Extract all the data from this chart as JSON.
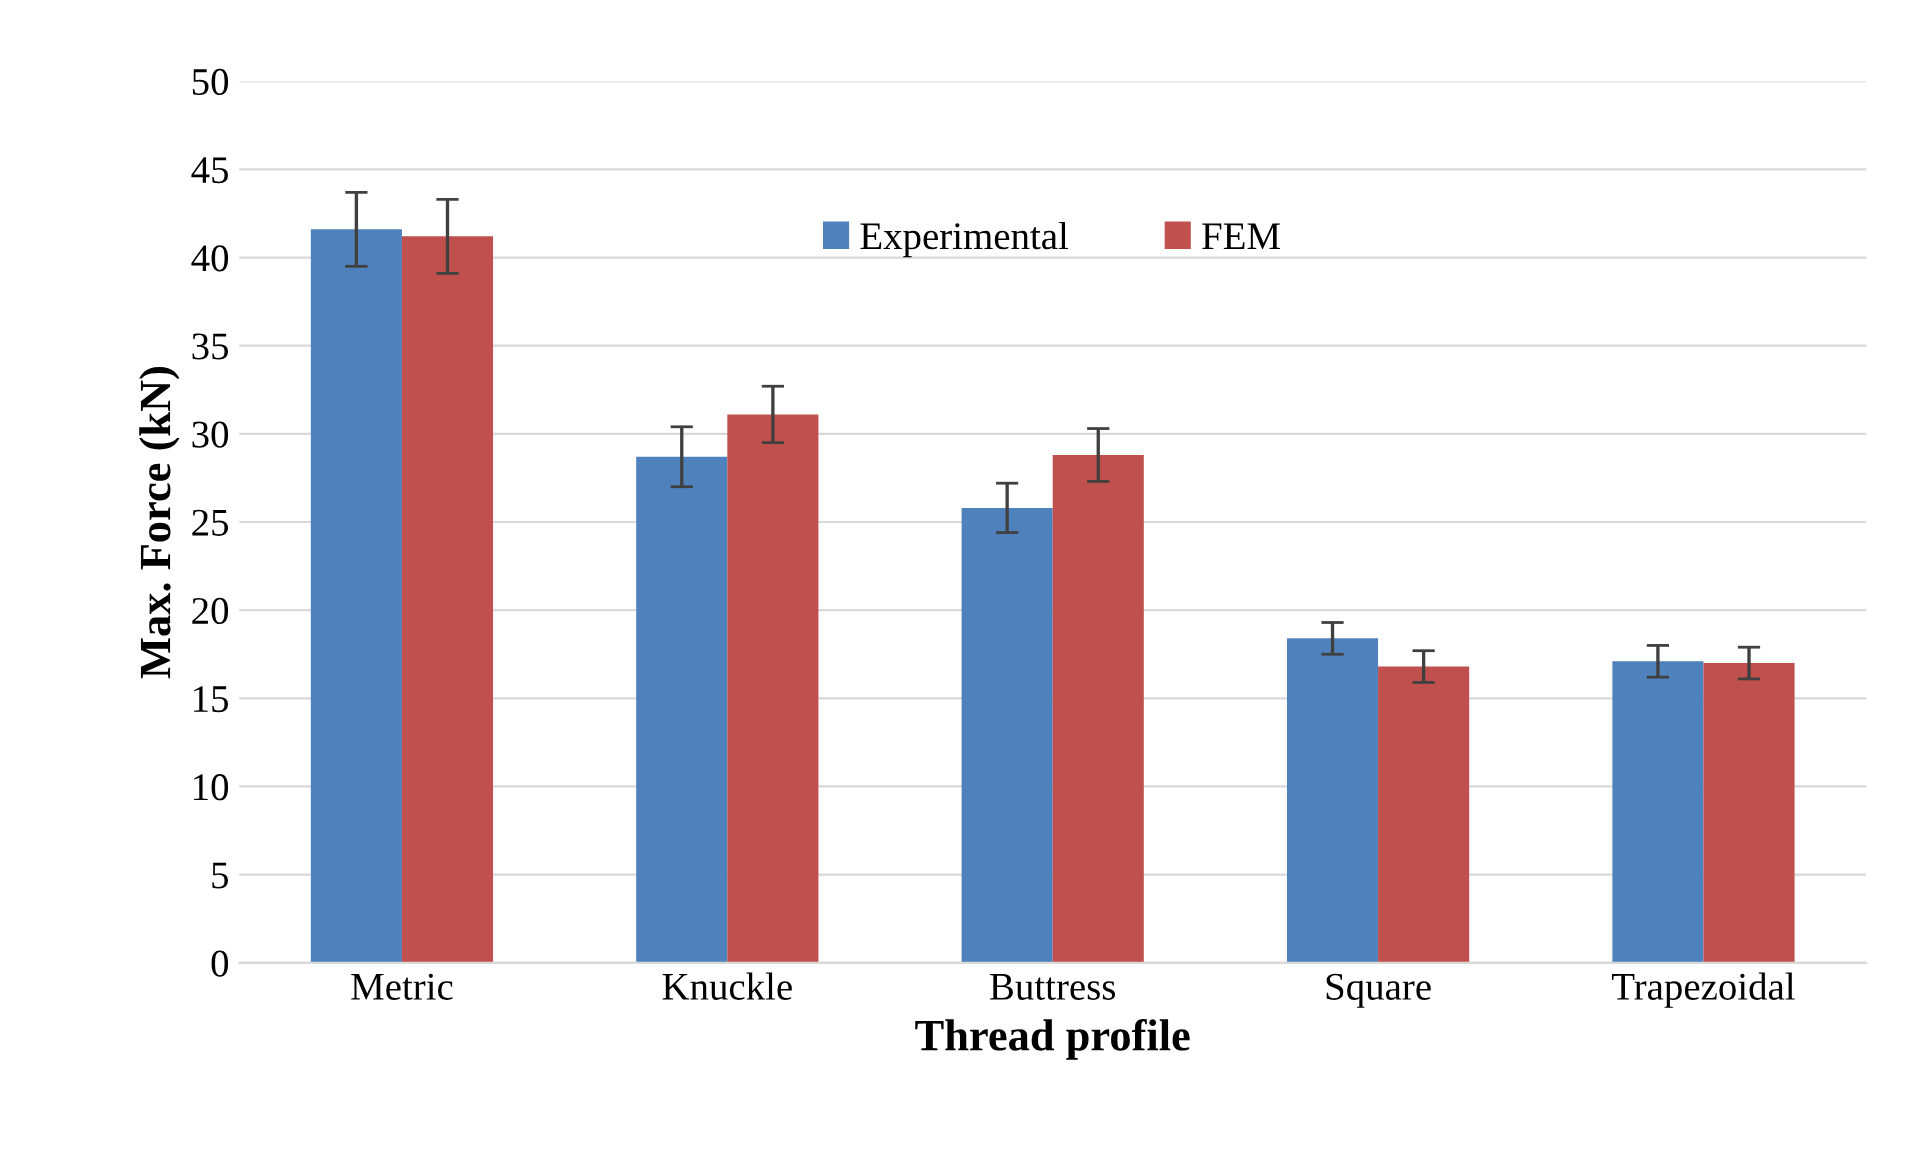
{
  "chart_data": {
    "type": "bar",
    "xlabel": "Thread profile",
    "ylabel": "Max. Force (kN)",
    "categories": [
      "Metric",
      "Knuckle",
      "Buttress",
      "Square",
      "Trapezoidal"
    ],
    "series": [
      {
        "name": "Experimental",
        "color": "#4f81bd",
        "values": [
          41.6,
          28.7,
          25.8,
          18.4,
          17.1
        ],
        "errors": [
          2.1,
          1.7,
          1.4,
          0.9,
          0.9
        ]
      },
      {
        "name": "FEM",
        "color": "#c0504d",
        "values": [
          41.2,
          31.1,
          28.8,
          16.8,
          17.0
        ],
        "errors": [
          2.1,
          1.6,
          1.5,
          0.9,
          0.9
        ]
      }
    ],
    "ylim": [
      0,
      50
    ],
    "yticks": [
      0,
      5,
      10,
      15,
      20,
      25,
      30,
      35,
      40,
      45,
      50
    ],
    "grid": "y",
    "legend": "top"
  }
}
